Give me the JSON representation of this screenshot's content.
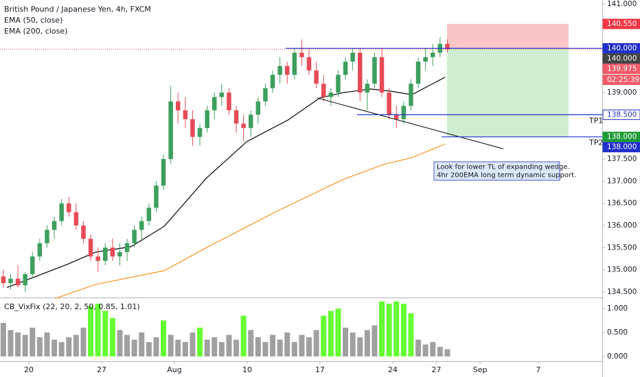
{
  "chart_data": [
    {
      "type": "candlestick",
      "title": "British Pound / Japanese Yen, 4h, FXCM",
      "legend": [
        "EMA (50, close)",
        "EMA (200, close)"
      ],
      "up_color": "#3d9f5d",
      "down_color": "#e54b57",
      "xlim": [
        -1.98,
        39.39
      ],
      "xticks": [
        {
          "value": 0,
          "label": "20"
        },
        {
          "value": 5,
          "label": "27"
        },
        {
          "value": 10,
          "label": "Aug"
        },
        {
          "value": 15,
          "label": "10"
        },
        {
          "value": 20,
          "label": "17"
        },
        {
          "value": 25,
          "label": "24"
        },
        {
          "value": 28,
          "label": "27"
        },
        {
          "value": 31,
          "label": "Sep"
        },
        {
          "value": 35,
          "label": "7"
        }
      ],
      "ylim": [
        134.39,
        141.09
      ],
      "yticks": [
        {
          "value": 134.5,
          "label": "134.500"
        },
        {
          "value": 135,
          "label": "135.000"
        },
        {
          "value": 135.5,
          "label": "135.500"
        },
        {
          "value": 136,
          "label": "136.000"
        },
        {
          "value": 136.5,
          "label": "136.500"
        },
        {
          "value": 137,
          "label": "137.000"
        },
        {
          "value": 137.5,
          "label": "137.500"
        },
        {
          "value": 138,
          "label": "138.000"
        },
        {
          "value": 138.5,
          "label": "138.500"
        },
        {
          "value": 139,
          "label": "139.000"
        },
        {
          "value": 139.5,
          "label": "139.500"
        },
        {
          "value": 140,
          "label": "140.000"
        },
        {
          "value": 140.5,
          "label": "140.500"
        },
        {
          "value": 141,
          "label": "141.000"
        }
      ],
      "x": [
        -1.75,
        -1.25,
        -0.75,
        -0.25,
        0.25,
        0.75,
        1.25,
        1.75,
        2.25,
        2.75,
        3.25,
        3.75,
        4.25,
        4.75,
        5.25,
        5.75,
        6.25,
        6.75,
        7.25,
        7.75,
        8.25,
        8.75,
        9.25,
        9.75,
        10.25,
        10.75,
        11.25,
        11.75,
        12.25,
        12.75,
        13.25,
        13.75,
        14.25,
        14.75,
        15.25,
        15.75,
        16.25,
        16.75,
        17.25,
        17.75,
        18.25,
        18.75,
        19.25,
        19.75,
        20.25,
        20.75,
        21.25,
        21.75,
        22.25,
        22.75,
        23.25,
        23.75,
        24.25,
        24.75,
        25.25,
        25.75,
        26.25,
        26.75,
        27.25,
        27.75,
        28.25,
        28.75
      ],
      "ohlc": [
        [
          134.85,
          135.0,
          134.6,
          134.7
        ],
        [
          134.7,
          134.9,
          134.55,
          134.8
        ],
        [
          134.8,
          135.1,
          134.6,
          134.65
        ],
        [
          134.65,
          134.95,
          134.5,
          134.9
        ],
        [
          134.9,
          135.4,
          134.8,
          135.3
        ],
        [
          135.3,
          135.7,
          135.2,
          135.6
        ],
        [
          135.6,
          136.0,
          135.5,
          135.9
        ],
        [
          135.9,
          136.2,
          135.7,
          136.1
        ],
        [
          136.1,
          136.6,
          136.0,
          136.5
        ],
        [
          136.5,
          136.65,
          136.2,
          136.3
        ],
        [
          136.3,
          136.5,
          135.9,
          136.0
        ],
        [
          136.0,
          136.1,
          135.6,
          135.7
        ],
        [
          135.7,
          135.8,
          135.2,
          135.3
        ],
        [
          135.3,
          135.5,
          134.95,
          135.2
        ],
        [
          135.2,
          135.6,
          135.1,
          135.5
        ],
        [
          135.5,
          135.7,
          135.2,
          135.3
        ],
        [
          135.3,
          135.6,
          135.1,
          135.4
        ],
        [
          135.4,
          135.7,
          135.2,
          135.6
        ],
        [
          135.6,
          136.0,
          135.5,
          135.9
        ],
        [
          135.9,
          136.2,
          135.7,
          136.1
        ],
        [
          136.1,
          136.5,
          136.0,
          136.4
        ],
        [
          136.4,
          137.0,
          136.3,
          136.9
        ],
        [
          136.9,
          137.6,
          136.8,
          137.5
        ],
        [
          137.5,
          139.15,
          137.4,
          138.8
        ],
        [
          138.8,
          139.0,
          138.3,
          138.6
        ],
        [
          138.6,
          138.9,
          138.2,
          138.4
        ],
        [
          138.4,
          138.6,
          137.8,
          138.0
        ],
        [
          138.0,
          138.3,
          137.8,
          138.2
        ],
        [
          138.2,
          138.7,
          138.1,
          138.6
        ],
        [
          138.6,
          139.0,
          138.4,
          138.9
        ],
        [
          138.9,
          139.2,
          138.7,
          139.0
        ],
        [
          139.0,
          139.1,
          138.5,
          138.6
        ],
        [
          138.6,
          138.7,
          138.1,
          138.3
        ],
        [
          138.3,
          138.5,
          137.9,
          138.2
        ],
        [
          138.2,
          138.6,
          138.0,
          138.5
        ],
        [
          138.5,
          138.9,
          138.3,
          138.8
        ],
        [
          138.8,
          139.2,
          138.7,
          139.1
        ],
        [
          139.1,
          139.5,
          139.0,
          139.4
        ],
        [
          139.4,
          139.8,
          139.2,
          139.6
        ],
        [
          139.6,
          139.7,
          139.2,
          139.4
        ],
        [
          139.4,
          140.0,
          139.3,
          139.9
        ],
        [
          139.9,
          140.2,
          139.6,
          139.8
        ],
        [
          139.8,
          140.0,
          139.4,
          139.5
        ],
        [
          139.5,
          139.7,
          139.1,
          139.2
        ],
        [
          139.2,
          139.4,
          138.8,
          138.9
        ],
        [
          138.9,
          139.1,
          138.7,
          139.0
        ],
        [
          139.0,
          139.5,
          138.9,
          139.4
        ],
        [
          139.4,
          139.8,
          139.3,
          139.7
        ],
        [
          139.7,
          140.0,
          139.5,
          139.9
        ],
        [
          139.9,
          140.0,
          138.8,
          139.0
        ],
        [
          139.0,
          139.3,
          138.6,
          139.2
        ],
        [
          139.2,
          139.9,
          139.1,
          139.8
        ],
        [
          139.8,
          140.0,
          138.9,
          139.0
        ],
        [
          139.0,
          139.1,
          138.4,
          138.5
        ],
        [
          138.5,
          138.7,
          138.2,
          138.4
        ],
        [
          138.4,
          138.8,
          138.3,
          138.7
        ],
        [
          138.7,
          139.3,
          138.6,
          139.2
        ],
        [
          139.2,
          139.8,
          139.1,
          139.7
        ],
        [
          139.7,
          140.0,
          139.5,
          139.8
        ],
        [
          139.8,
          140.1,
          139.6,
          139.9
        ],
        [
          139.9,
          140.25,
          139.8,
          140.1
        ],
        [
          140.1,
          140.2,
          139.9,
          139.975
        ]
      ],
      "series": [
        {
          "name": "EMA (50, close)",
          "color": "#000000",
          "x": [
            -1.5,
            2.7,
            4.6,
            7,
            9.3,
            12.2,
            15,
            17.8,
            20,
            21.6,
            23.5,
            24.9,
            26.3,
            28.6
          ],
          "values": [
            134.6,
            135.13,
            135.4,
            135.52,
            135.98,
            137.07,
            137.9,
            138.38,
            138.88,
            139.0,
            139.08,
            139.03,
            138.95,
            139.35
          ]
        },
        {
          "name": "EMA (200, close)",
          "color": "#f7931e",
          "x": [
            1.8,
            4.6,
            9.3,
            12.2,
            16.9,
            21.6,
            24.4,
            26.3,
            28.6
          ],
          "values": [
            134.35,
            134.67,
            134.98,
            135.5,
            136.3,
            137.04,
            137.38,
            137.53,
            137.84
          ]
        }
      ],
      "hlines": [
        {
          "value": 140.0,
          "from": 17.64,
          "color": "#2030c8"
        },
        {
          "value": 138.5,
          "from": 22.55,
          "color": "#2030c8",
          "label": "TP1"
        },
        {
          "value": 138.0,
          "from": 28.35,
          "color": "#2030c8",
          "label": "TP2"
        }
      ],
      "trendline": {
        "x": [
          19.81,
          32.6
        ],
        "values": [
          138.88,
          137.73
        ],
        "color": "#000000"
      },
      "position": {
        "x": [
          28.73,
          37.08
        ],
        "entry": 140.0,
        "stop": 140.55,
        "target": 138.0
      },
      "last_price": 139.975,
      "annotation": [
        "Look for lower TL of expanding wedge.",
        "4hr 200EMA long term dynamic support."
      ],
      "price_tags": [
        {
          "value": 140.55,
          "label": "140.550",
          "bg": "#f23645",
          "fg": "#ffffff"
        },
        {
          "value": 140.0,
          "label": "140.000",
          "bg": "#2030c8",
          "fg": "#ffffff"
        },
        {
          "value": 140.0,
          "label": "140.000",
          "bg": "#444444",
          "fg": "#ffffff"
        },
        {
          "value": 139.975,
          "label": "139.975",
          "bg": "#f05b68",
          "fg": "#ffffff"
        },
        {
          "label": "02:25:39",
          "bg": "#f05b68",
          "fg": "#ffffff"
        },
        {
          "value": 138.5,
          "label": "138.500",
          "bg": "#ffffff",
          "fg": "#2030c8"
        },
        {
          "value": 138.0,
          "label": "138.000",
          "bg": "#1e9b36",
          "fg": "#ffffff"
        },
        {
          "value": 138.0,
          "label": "138.000",
          "bg": "#2030c8",
          "fg": "#ffffff"
        }
      ]
    },
    {
      "type": "bar",
      "title": "CB_VixFix (22, 20, 2, 50, 0.85, 1.01)",
      "ylim": [
        -0.1,
        1.23
      ],
      "yticks": [
        {
          "value": 0,
          "label": "0.000"
        },
        {
          "value": 0.5,
          "label": "0.500"
        },
        {
          "value": 1,
          "label": "1.000"
        }
      ],
      "values": [
        0.7,
        0.55,
        0.5,
        0.45,
        0.6,
        0.4,
        0.5,
        0.35,
        0.3,
        0.4,
        0.45,
        0.6,
        1.05,
        1.1,
        0.95,
        0.8,
        0.55,
        0.45,
        0.35,
        0.5,
        0.3,
        0.4,
        0.75,
        0.45,
        0.35,
        0.3,
        0.5,
        0.6,
        0.35,
        0.4,
        0.3,
        0.45,
        0.35,
        0.85,
        0.55,
        0.4,
        0.3,
        0.45,
        0.35,
        0.5,
        0.3,
        0.45,
        0.4,
        0.55,
        0.85,
        0.95,
        1.0,
        0.6,
        0.5,
        0.4,
        0.55,
        0.65,
        1.15,
        1.1,
        1.15,
        1.1,
        0.9,
        0.35,
        0.25,
        0.3,
        0.2,
        0.15
      ],
      "colors": [
        "#a0a0a0",
        "#a0a0a0",
        "#a0a0a0",
        "#a0a0a0",
        "#a0a0a0",
        "#a0a0a0",
        "#a0a0a0",
        "#a0a0a0",
        "#a0a0a0",
        "#a0a0a0",
        "#a0a0a0",
        "#a0a0a0",
        "#66ff33",
        "#66ff33",
        "#66ff33",
        "#66ff33",
        "#a0a0a0",
        "#a0a0a0",
        "#a0a0a0",
        "#a0a0a0",
        "#a0a0a0",
        "#a0a0a0",
        "#66ff33",
        "#a0a0a0",
        "#a0a0a0",
        "#a0a0a0",
        "#a0a0a0",
        "#66ff33",
        "#a0a0a0",
        "#a0a0a0",
        "#a0a0a0",
        "#a0a0a0",
        "#a0a0a0",
        "#66ff33",
        "#a0a0a0",
        "#a0a0a0",
        "#a0a0a0",
        "#a0a0a0",
        "#a0a0a0",
        "#a0a0a0",
        "#a0a0a0",
        "#a0a0a0",
        "#a0a0a0",
        "#a0a0a0",
        "#66ff33",
        "#66ff33",
        "#66ff33",
        "#a0a0a0",
        "#a0a0a0",
        "#a0a0a0",
        "#a0a0a0",
        "#a0a0a0",
        "#66ff33",
        "#66ff33",
        "#66ff33",
        "#66ff33",
        "#66ff33",
        "#a0a0a0",
        "#a0a0a0",
        "#a0a0a0",
        "#a0a0a0",
        "#a0a0a0"
      ]
    }
  ]
}
